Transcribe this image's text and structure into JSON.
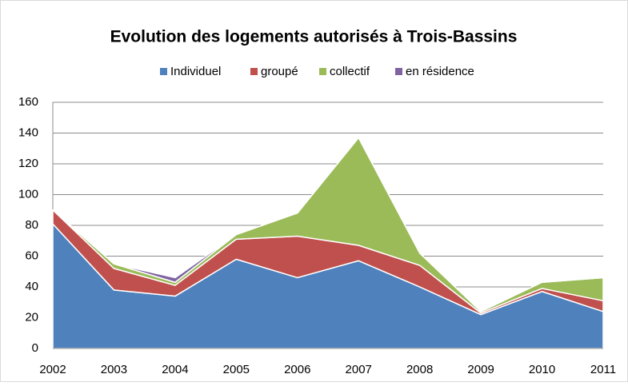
{
  "chart_data": {
    "type": "stacked_area",
    "title": "Evolution des logements autorisés à Trois-Bassins",
    "categories": [
      "2002",
      "2003",
      "2004",
      "2005",
      "2006",
      "2007",
      "2008",
      "2009",
      "2010",
      "2011"
    ],
    "series": [
      {
        "name": "Individuel",
        "color": "#4f81bd",
        "values": [
          81,
          38,
          34,
          58,
          46,
          57,
          40,
          22,
          37,
          24
        ]
      },
      {
        "name": "groupé",
        "color": "#c0504d",
        "values": [
          9,
          14,
          7,
          13,
          27,
          10,
          14,
          1,
          2,
          7
        ]
      },
      {
        "name": "collectif",
        "color": "#9bbb59",
        "values": [
          0,
          3,
          2,
          3,
          15,
          70,
          8,
          1,
          4,
          15
        ]
      },
      {
        "name": "en résidence",
        "color": "#8064a2",
        "values": [
          0,
          0,
          3,
          0,
          0,
          0,
          0,
          0,
          0,
          0
        ]
      }
    ],
    "ylim": [
      0,
      160
    ],
    "yticks": [
      0,
      20,
      40,
      60,
      80,
      100,
      120,
      140,
      160
    ],
    "grid": true,
    "legend": "top"
  }
}
